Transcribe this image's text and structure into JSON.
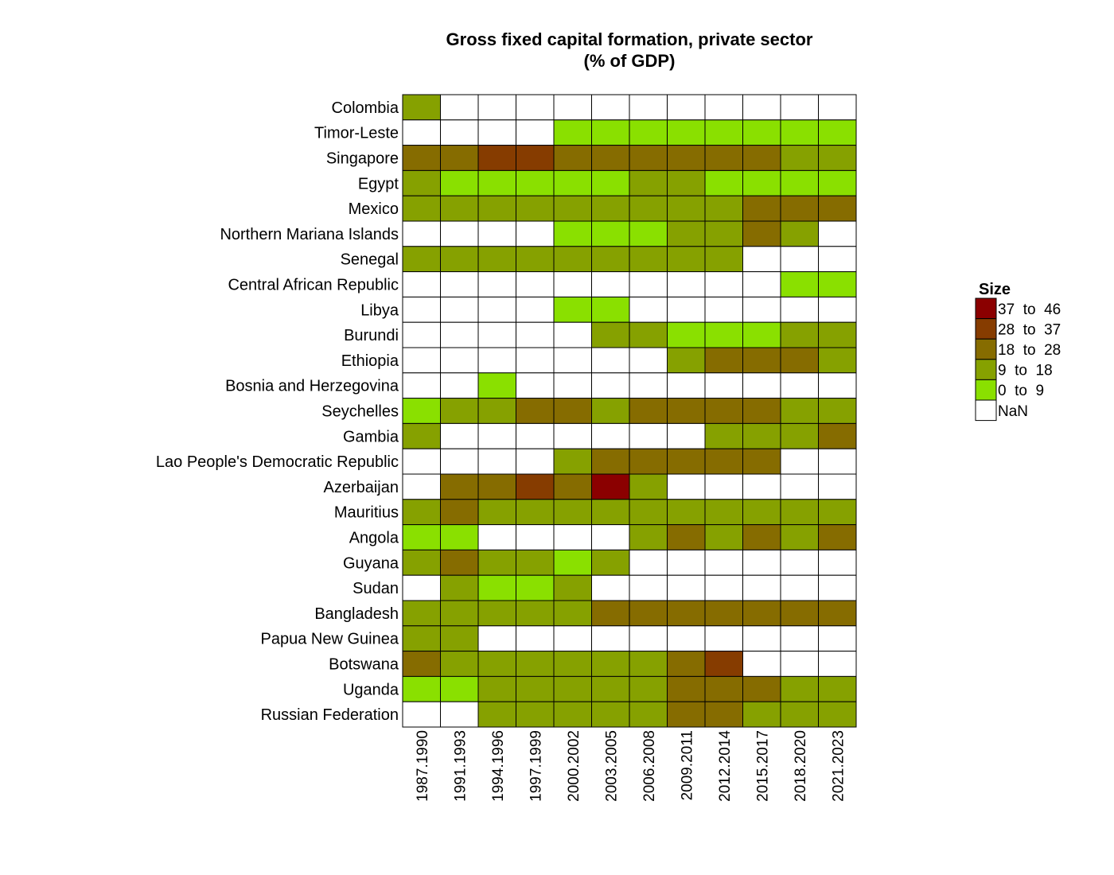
{
  "chart_data": {
    "type": "heatmap",
    "title": "Gross fixed capital formation, private sector",
    "subtitle": "(% of GDP)",
    "rows": [
      "Colombia",
      "Timor-Leste",
      "Singapore",
      "Egypt",
      "Mexico",
      "Northern Mariana Islands",
      "Senegal",
      "Central African Republic",
      "Libya",
      "Burundi",
      "Ethiopia",
      "Bosnia and Herzegovina",
      "Seychelles",
      "Gambia",
      "Lao People's Democratic Republic",
      "Azerbaijan",
      "Mauritius",
      "Angola",
      "Guyana",
      "Sudan",
      "Bangladesh",
      "Papua New Guinea",
      "Botswana",
      "Uganda",
      "Russian Federation"
    ],
    "columns": [
      "1987.1990",
      "1991.1993",
      "1994.1996",
      "1997.1999",
      "2000.2002",
      "2003.2005",
      "2006.2008",
      "2009.2011",
      "2012.2014",
      "2015.2017",
      "2018.2020",
      "2021.2023"
    ],
    "legend": {
      "title": "Size",
      "placement": "right",
      "bins": [
        {
          "label": "37  to  46",
          "color": "#8b0000"
        },
        {
          "label": "28  to  37",
          "color": "#863c00"
        },
        {
          "label": "18  to  28",
          "color": "#866c00"
        },
        {
          "label": "9  to  18",
          "color": "#86a100"
        },
        {
          "label": "0  to  9",
          "color": "#8ae000"
        },
        {
          "label": "NaN",
          "color": "#ffffff"
        }
      ]
    },
    "bin_index_values": [
      [
        3,
        5,
        5,
        5,
        5,
        5,
        5,
        5,
        5,
        5,
        5,
        5
      ],
      [
        5,
        5,
        5,
        5,
        4,
        4,
        4,
        4,
        4,
        4,
        4,
        4
      ],
      [
        2,
        2,
        1,
        1,
        2,
        2,
        2,
        2,
        2,
        2,
        3,
        3
      ],
      [
        3,
        4,
        4,
        4,
        4,
        4,
        3,
        3,
        4,
        4,
        4,
        4
      ],
      [
        3,
        3,
        3,
        3,
        3,
        3,
        3,
        3,
        3,
        2,
        2,
        2
      ],
      [
        5,
        5,
        5,
        5,
        4,
        4,
        4,
        3,
        3,
        2,
        3,
        5
      ],
      [
        3,
        3,
        3,
        3,
        3,
        3,
        3,
        3,
        3,
        5,
        5,
        5
      ],
      [
        5,
        5,
        5,
        5,
        5,
        5,
        5,
        5,
        5,
        5,
        4,
        4
      ],
      [
        5,
        5,
        5,
        5,
        4,
        4,
        5,
        5,
        5,
        5,
        5,
        5
      ],
      [
        5,
        5,
        5,
        5,
        5,
        3,
        3,
        4,
        4,
        4,
        3,
        3
      ],
      [
        5,
        5,
        5,
        5,
        5,
        5,
        5,
        3,
        2,
        2,
        2,
        3
      ],
      [
        5,
        5,
        4,
        5,
        5,
        5,
        5,
        5,
        5,
        5,
        5,
        5
      ],
      [
        4,
        3,
        3,
        2,
        2,
        3,
        2,
        2,
        2,
        2,
        3,
        3
      ],
      [
        3,
        5,
        5,
        5,
        5,
        5,
        5,
        5,
        3,
        3,
        3,
        2
      ],
      [
        5,
        5,
        5,
        5,
        3,
        2,
        2,
        2,
        2,
        2,
        5,
        5
      ],
      [
        5,
        2,
        2,
        1,
        2,
        0,
        3,
        5,
        5,
        5,
        5,
        5
      ],
      [
        3,
        2,
        3,
        3,
        3,
        3,
        3,
        3,
        3,
        3,
        3,
        3
      ],
      [
        4,
        4,
        5,
        5,
        5,
        5,
        3,
        2,
        3,
        2,
        3,
        2
      ],
      [
        3,
        2,
        3,
        3,
        4,
        3,
        5,
        5,
        5,
        5,
        5,
        5
      ],
      [
        5,
        3,
        4,
        4,
        3,
        5,
        5,
        5,
        5,
        5,
        5,
        5
      ],
      [
        3,
        3,
        3,
        3,
        3,
        2,
        2,
        2,
        2,
        2,
        2,
        2
      ],
      [
        3,
        3,
        5,
        5,
        5,
        5,
        5,
        5,
        5,
        5,
        5,
        5
      ],
      [
        2,
        3,
        3,
        3,
        3,
        3,
        3,
        2,
        1,
        5,
        5,
        5
      ],
      [
        4,
        4,
        3,
        3,
        3,
        3,
        3,
        2,
        2,
        2,
        3,
        3
      ],
      [
        5,
        5,
        3,
        3,
        3,
        3,
        3,
        2,
        2,
        3,
        3,
        3
      ]
    ]
  }
}
